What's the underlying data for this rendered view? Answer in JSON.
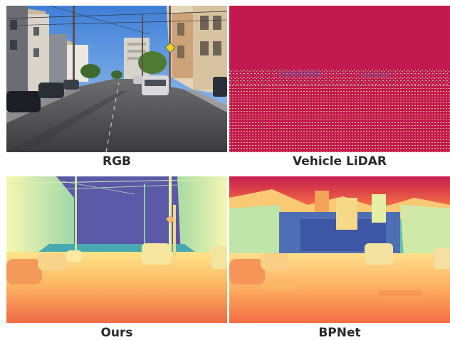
{
  "panels": [
    {
      "id": "rgb",
      "caption": "RGB"
    },
    {
      "id": "lidar",
      "caption": "Vehicle LiDAR"
    },
    {
      "id": "ours",
      "caption": "Ours"
    },
    {
      "id": "bpnet",
      "caption": "BPNet"
    }
  ],
  "colors": {
    "lidar_background": "#c21a4e",
    "depth_far": "#5e4fa2",
    "depth_mid": "#66c2a5",
    "depth_near": "#f46d43"
  }
}
